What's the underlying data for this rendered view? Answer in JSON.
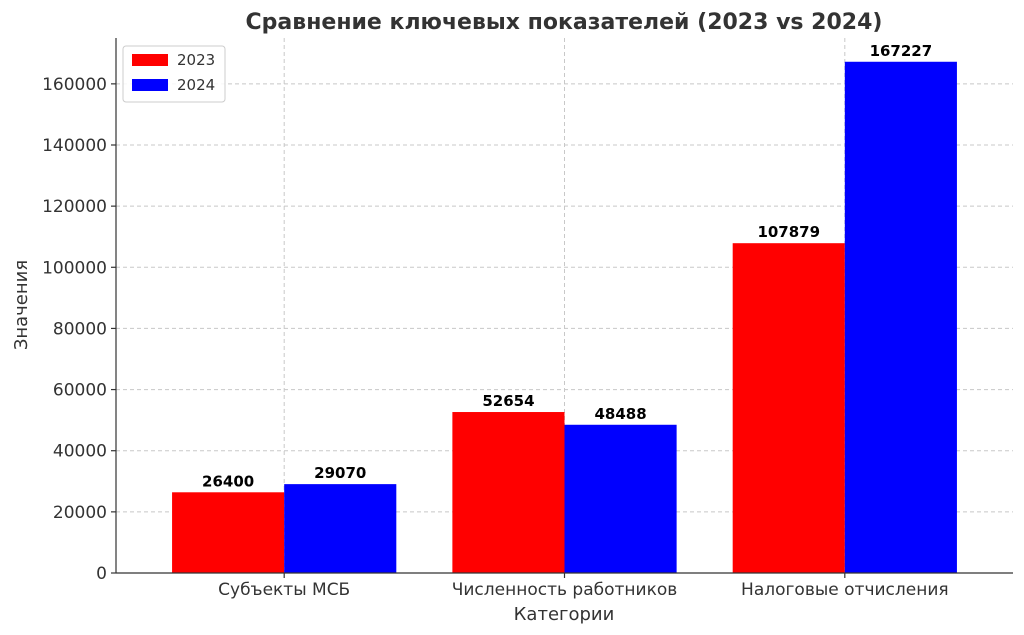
{
  "chart_data": {
    "type": "bar",
    "title": "Сравнение ключевых показателей (2023 vs 2024)",
    "xlabel": "Категории",
    "ylabel": "Значения",
    "categories": [
      "Субъекты МСБ",
      "Численность работников",
      "Налоговые отчисления"
    ],
    "series": [
      {
        "name": "2023",
        "color": "#ff0000",
        "values": [
          26400,
          52654,
          107879
        ]
      },
      {
        "name": "2024",
        "color": "#0000ff",
        "values": [
          29070,
          48488,
          167227
        ]
      }
    ],
    "ylim": [
      0,
      175000
    ],
    "yticks": [
      0,
      20000,
      40000,
      60000,
      80000,
      100000,
      120000,
      140000,
      160000
    ],
    "grid": true,
    "legend_position": "top-left"
  }
}
